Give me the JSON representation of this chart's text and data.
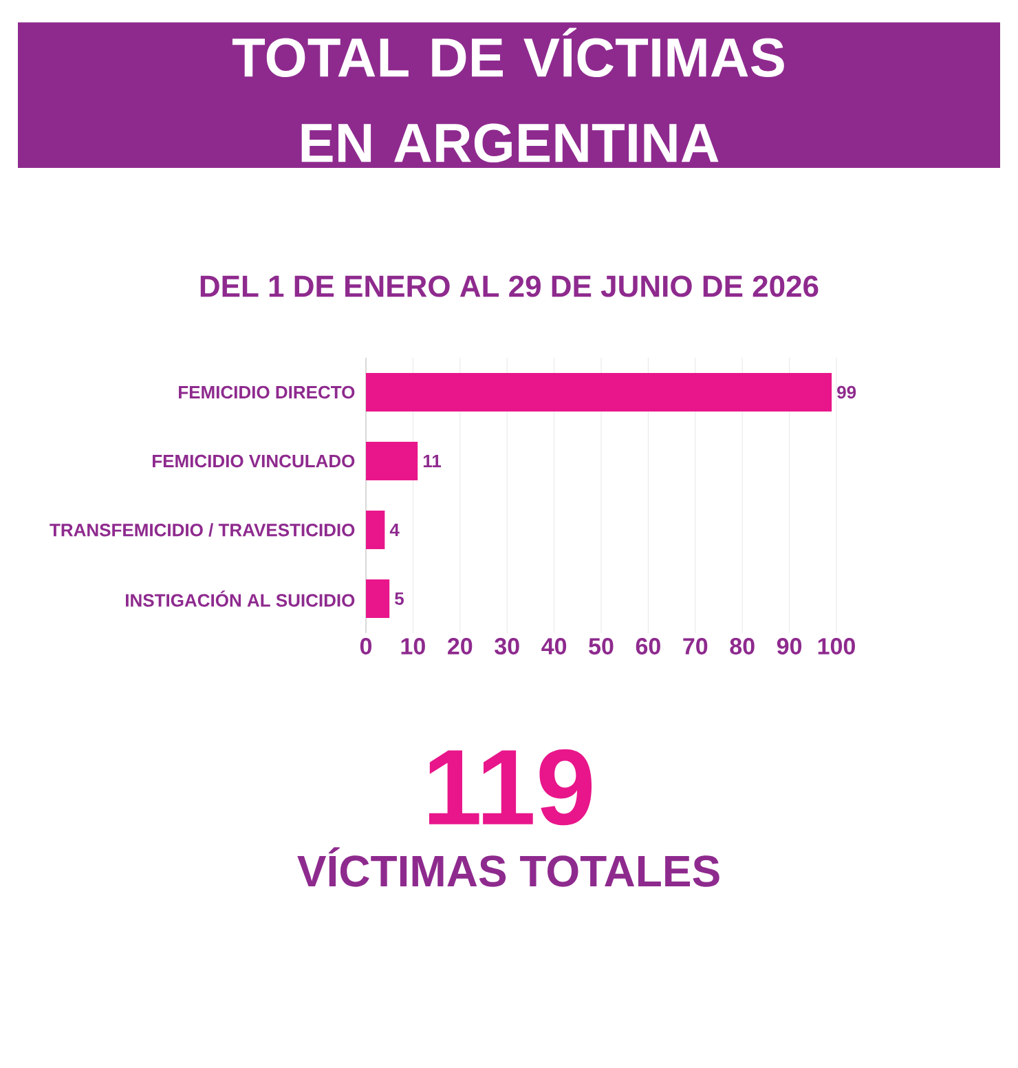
{
  "chart_data": {
    "type": "bar",
    "orientation": "horizontal",
    "title": "TOTAL DE VÍCTIMAS EN ARGENTINA",
    "subtitle": "DEL 1 DE ENERO AL 29 DE JUNIO DE 2026",
    "categories": [
      "FEMICIDIO DIRECTO",
      "FEMICIDIO VINCULADO",
      "TRANSFEMICIDIO / TRAVESTICIDIO",
      "INSTIGACIÓN AL SUICIDIO"
    ],
    "values": [
      99,
      11,
      4,
      5
    ],
    "color": "#e8168a",
    "xlim": [
      0,
      100
    ],
    "xticks": [
      0,
      10,
      20,
      30,
      40,
      50,
      60,
      70,
      80,
      90,
      100
    ],
    "grid": "x",
    "data_labels": true,
    "annotations": [
      "119",
      "VÍCTIMAS TOTALES"
    ]
  }
}
